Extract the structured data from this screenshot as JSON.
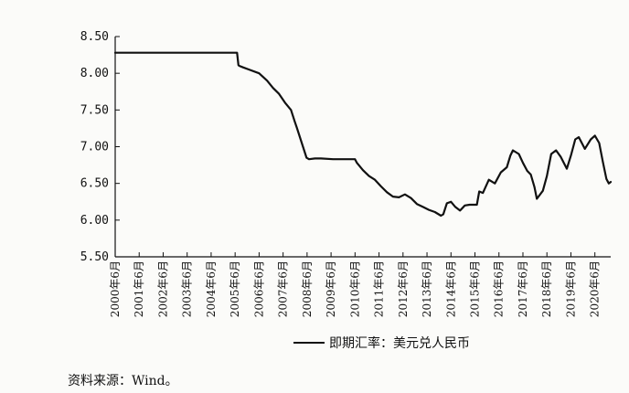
{
  "source_note": "资料来源：Wind。",
  "chart_data": {
    "type": "line",
    "title": "",
    "xlabel": "",
    "ylabel": "",
    "ylim": [
      5.5,
      8.5
    ],
    "yticks": [
      "8.50",
      "8.00",
      "7.50",
      "7.00",
      "6.50",
      "6.00",
      "5.50"
    ],
    "yvalues": [
      8.5,
      8.0,
      7.5,
      7.0,
      6.5,
      6.0,
      5.5
    ],
    "xlim": [
      2000.42,
      2021.08
    ],
    "xticks": [
      "2000年6月",
      "2001年6月",
      "2002年6月",
      "2003年6月",
      "2004年6月",
      "2005年6月",
      "2006年6月",
      "2007年6月",
      "2008年6月",
      "2009年6月",
      "2010年6月",
      "2011年6月",
      "2012年6月",
      "2013年6月",
      "2014年6月",
      "2015年6月",
      "2016年6月",
      "2017年6月",
      "2018年6月",
      "2019年6月",
      "2020年6月"
    ],
    "grid": false,
    "legend_position": "bottom-center",
    "series": [
      {
        "name": "即期汇率：美元兑人民币",
        "color": "#111111",
        "x": [
          2000.42,
          2001.42,
          2002.42,
          2003.42,
          2004.42,
          2005.5,
          2005.56,
          2005.6,
          2005.75,
          2006.0,
          2006.42,
          2006.75,
          2007.0,
          2007.25,
          2007.5,
          2007.75,
          2007.9,
          2008.0,
          2008.2,
          2008.4,
          2008.5,
          2008.75,
          2009.0,
          2009.5,
          2010.0,
          2010.42,
          2010.5,
          2010.75,
          2011.0,
          2011.25,
          2011.5,
          2011.75,
          2012.0,
          2012.25,
          2012.5,
          2012.75,
          2013.0,
          2013.25,
          2013.5,
          2013.75,
          2014.0,
          2014.1,
          2014.25,
          2014.42,
          2014.6,
          2014.8,
          2015.0,
          2015.2,
          2015.5,
          2015.6,
          2015.75,
          2016.0,
          2016.25,
          2016.5,
          2016.75,
          2016.9,
          2017.0,
          2017.25,
          2017.42,
          2017.6,
          2017.75,
          2017.9,
          2018.0,
          2018.25,
          2018.42,
          2018.6,
          2018.8,
          2019.0,
          2019.25,
          2019.42,
          2019.6,
          2019.75,
          2020.0,
          2020.25,
          2020.42,
          2020.6,
          2020.75,
          2020.9,
          2021.0,
          2021.08
        ],
        "y": [
          8.28,
          8.28,
          8.28,
          8.28,
          8.28,
          8.28,
          8.11,
          8.1,
          8.08,
          8.05,
          8.0,
          7.9,
          7.8,
          7.72,
          7.6,
          7.5,
          7.35,
          7.25,
          7.05,
          6.85,
          6.83,
          6.84,
          6.84,
          6.83,
          6.83,
          6.83,
          6.78,
          6.68,
          6.6,
          6.55,
          6.46,
          6.38,
          6.32,
          6.31,
          6.35,
          6.3,
          6.22,
          6.18,
          6.14,
          6.11,
          6.06,
          6.08,
          6.23,
          6.25,
          6.18,
          6.13,
          6.2,
          6.21,
          6.21,
          6.39,
          6.37,
          6.55,
          6.5,
          6.65,
          6.72,
          6.88,
          6.95,
          6.9,
          6.78,
          6.67,
          6.62,
          6.45,
          6.29,
          6.4,
          6.6,
          6.9,
          6.95,
          6.86,
          6.7,
          6.88,
          7.1,
          7.13,
          6.97,
          7.1,
          7.15,
          7.05,
          6.8,
          6.56,
          6.5,
          6.52
        ]
      }
    ]
  }
}
